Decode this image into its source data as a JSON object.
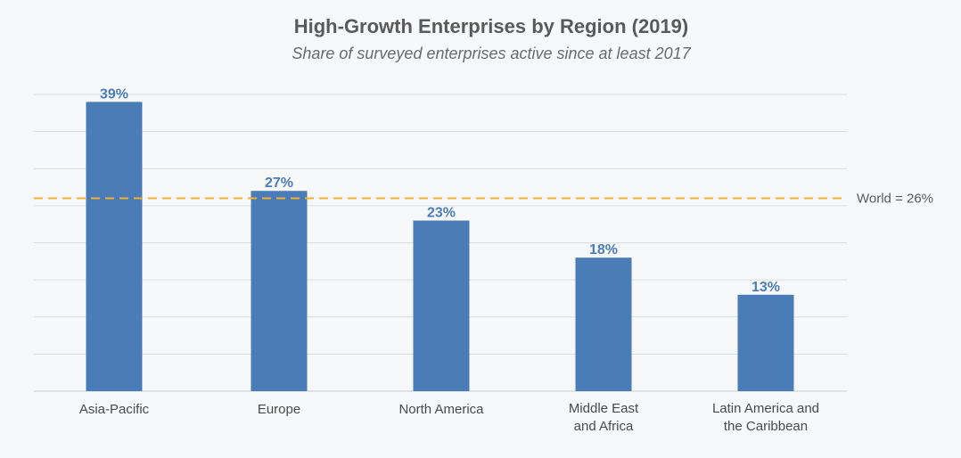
{
  "chart_data": {
    "type": "bar",
    "title": "High-Growth Enterprises by Region (2019)",
    "subtitle": "Share of surveyed enterprises active since at least 2017",
    "categories": [
      [
        "Asia-Pacific"
      ],
      [
        "Europe"
      ],
      [
        "North America"
      ],
      [
        "Middle East",
        "and Africa"
      ],
      [
        "Latin America and",
        "the Caribbean"
      ]
    ],
    "values": [
      39,
      27,
      23,
      18,
      13
    ],
    "value_labels": [
      "39%",
      "27%",
      "23%",
      "18%",
      "13%"
    ],
    "ylim": [
      0,
      40
    ],
    "gridline_step": 5,
    "reference_line": {
      "value": 26,
      "label": "World = 26%"
    },
    "colors": {
      "bar": "#4a7db8",
      "reference": "#f0b030"
    }
  }
}
